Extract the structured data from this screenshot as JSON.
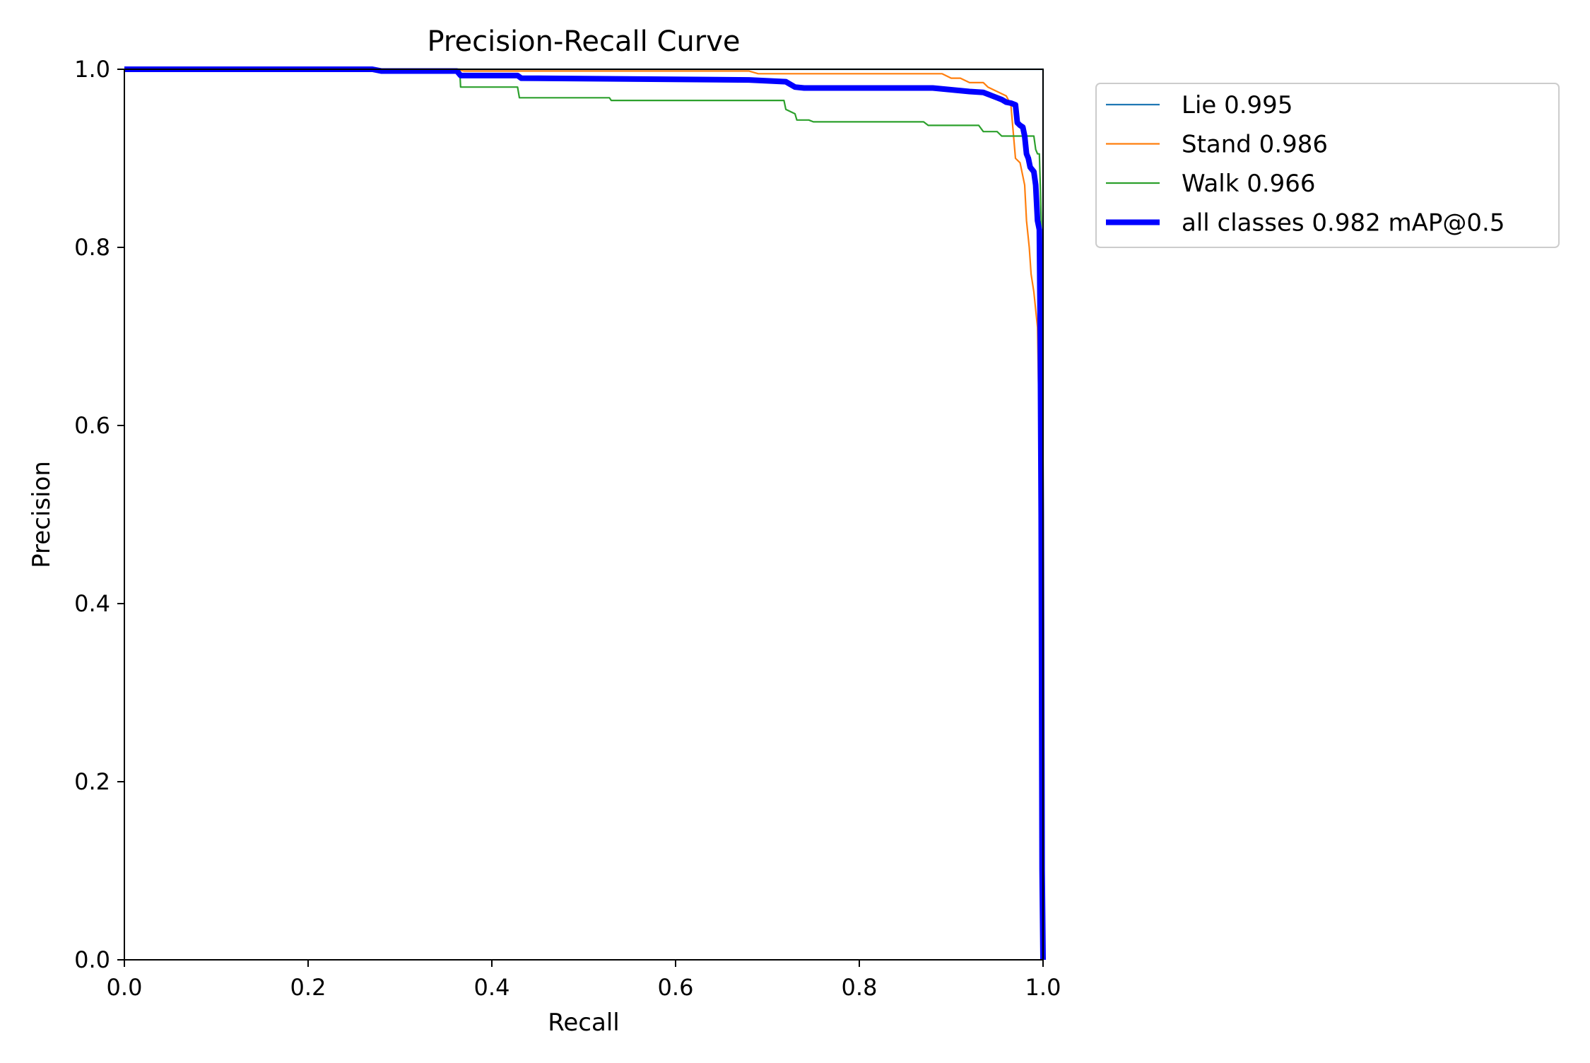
{
  "chart_data": {
    "type": "line",
    "title": "Precision-Recall Curve",
    "xlabel": "Recall",
    "ylabel": "Precision",
    "xlim": [
      0,
      1
    ],
    "ylim": [
      0,
      1
    ],
    "xticks": [
      "0.0",
      "0.2",
      "0.4",
      "0.6",
      "0.8",
      "1.0"
    ],
    "yticks": [
      "0.0",
      "0.2",
      "0.4",
      "0.6",
      "0.8",
      "1.0"
    ],
    "grid": false,
    "legend_position": "outside-upper-right",
    "series": [
      {
        "name": "Lie 0.995",
        "color": "#1f77b4",
        "x": [
          0,
          0.999,
          0.999,
          1.0,
          1.0
        ],
        "y": [
          1.0,
          1.0,
          1.0,
          1.0,
          0.0
        ]
      },
      {
        "name": "Stand 0.986",
        "color": "#ff7f0e",
        "x": [
          0,
          0.36,
          0.37,
          0.68,
          0.69,
          0.89,
          0.9,
          0.91,
          0.92,
          0.935,
          0.94,
          0.95,
          0.96,
          0.965,
          0.97,
          0.975,
          0.978,
          0.98,
          0.982,
          0.985,
          0.987,
          0.99,
          0.992,
          0.994,
          0.995,
          0.996,
          0.997,
          0.998,
          0.999,
          1.0
        ],
        "y": [
          1.0,
          1.0,
          0.998,
          0.998,
          0.995,
          0.995,
          0.99,
          0.99,
          0.985,
          0.985,
          0.98,
          0.975,
          0.97,
          0.96,
          0.9,
          0.895,
          0.88,
          0.87,
          0.83,
          0.8,
          0.77,
          0.75,
          0.73,
          0.71,
          0.65,
          0.6,
          0.4,
          0.1,
          0.0,
          0.0
        ]
      },
      {
        "name": "Walk 0.966",
        "color": "#2ca02c",
        "x": [
          0,
          0.365,
          0.366,
          0.428,
          0.43,
          0.528,
          0.53,
          0.718,
          0.72,
          0.73,
          0.732,
          0.745,
          0.75,
          0.87,
          0.875,
          0.93,
          0.935,
          0.95,
          0.955,
          0.99,
          0.992,
          0.994,
          0.996,
          0.997,
          0.998,
          0.999,
          1.0
        ],
        "y": [
          1.0,
          1.0,
          0.98,
          0.98,
          0.968,
          0.968,
          0.965,
          0.965,
          0.955,
          0.95,
          0.943,
          0.943,
          0.941,
          0.941,
          0.937,
          0.937,
          0.93,
          0.93,
          0.925,
          0.925,
          0.91,
          0.905,
          0.905,
          0.87,
          0.83,
          0.5,
          0.0
        ]
      },
      {
        "name": "all classes 0.982 mAP@0.5",
        "color": "#0000ff",
        "x": [
          0,
          0.27,
          0.28,
          0.362,
          0.366,
          0.428,
          0.432,
          0.68,
          0.72,
          0.73,
          0.74,
          0.88,
          0.9,
          0.92,
          0.935,
          0.94,
          0.945,
          0.95,
          0.955,
          0.96,
          0.965,
          0.97,
          0.972,
          0.975,
          0.978,
          0.98,
          0.982,
          0.984,
          0.986,
          0.99,
          0.992,
          0.994,
          0.996,
          0.997,
          0.998,
          0.999,
          1.0
        ],
        "y": [
          1.0,
          1.0,
          0.998,
          0.998,
          0.993,
          0.993,
          0.99,
          0.988,
          0.986,
          0.98,
          0.979,
          0.979,
          0.977,
          0.975,
          0.974,
          0.972,
          0.97,
          0.968,
          0.966,
          0.963,
          0.962,
          0.96,
          0.94,
          0.937,
          0.935,
          0.925,
          0.905,
          0.9,
          0.89,
          0.885,
          0.87,
          0.83,
          0.82,
          0.7,
          0.5,
          0.1,
          0.0
        ]
      }
    ]
  }
}
